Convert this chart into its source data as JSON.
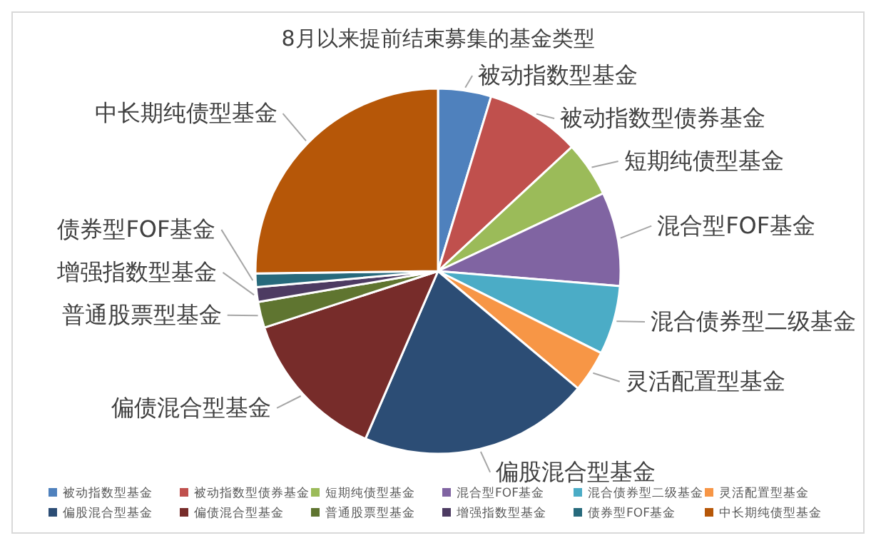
{
  "chart_data": {
    "type": "pie",
    "title": "8月以来提前结束募集的基金类型",
    "categories": [
      "被动指数型基金",
      "被动指数型债券基金",
      "短期纯债型基金",
      "混合型FOF基金",
      "混合债券型二级基金",
      "灵活配置型基金",
      "偏股混合型基金",
      "偏债混合型基金",
      "普通股票型基金",
      "增强指数型基金",
      "债券型FOF基金",
      "中长期纯债型基金"
    ],
    "values": [
      4.7,
      8.4,
      4.9,
      8.3,
      6.1,
      3.7,
      20.4,
      13.5,
      2.3,
      1.3,
      1.2,
      25.2
    ],
    "colors": [
      "#4f81bd",
      "#c0504d",
      "#9bbb59",
      "#8064a2",
      "#4bacc6",
      "#f79646",
      "#2c4d75",
      "#772c2a",
      "#5f7530",
      "#4d3b62",
      "#276a7c",
      "#b65708"
    ],
    "legend": "bottom"
  }
}
